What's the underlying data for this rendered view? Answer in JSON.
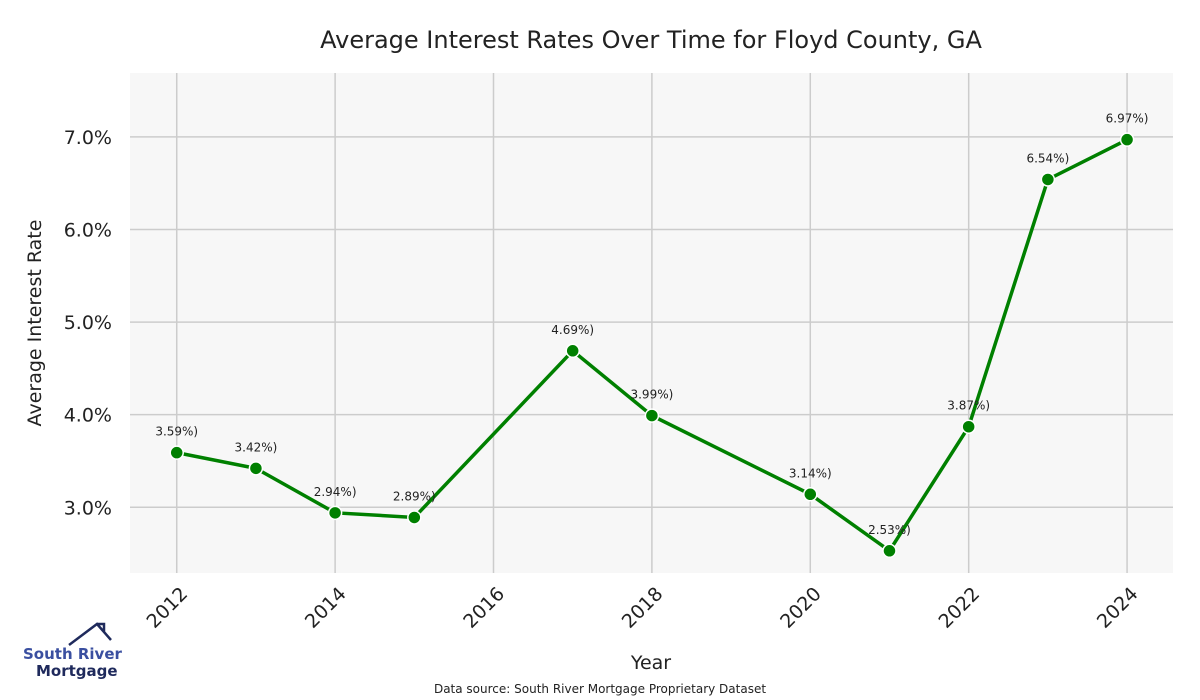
{
  "chart_data": {
    "type": "line",
    "title": "Average Interest Rates Over Time for Floyd County, GA",
    "xlabel": "Year",
    "ylabel": "Average Interest Rate",
    "x": [
      2012,
      2013,
      2014,
      2015,
      2017,
      2018,
      2020,
      2021,
      2022,
      2023,
      2024
    ],
    "series": [
      {
        "name": "Average Interest Rate",
        "values": [
          3.59,
          3.42,
          2.94,
          2.89,
          4.69,
          3.99,
          3.14,
          2.53,
          3.87,
          6.54,
          6.97
        ],
        "color": "#008000"
      }
    ],
    "data_labels": [
      "3.59%)",
      "3.42%)",
      "2.94%)",
      "2.89%)",
      "4.69%)",
      "3.99%)",
      "3.14%)",
      "2.53%)",
      "3.87%)",
      "6.54%)",
      "6.97%)"
    ],
    "xticks": [
      2012,
      2014,
      2016,
      2018,
      2020,
      2022,
      2024
    ],
    "yticks": [
      3.0,
      4.0,
      5.0,
      6.0,
      7.0
    ],
    "ytick_labels": [
      "3.0%",
      "4.0%",
      "5.0%",
      "6.0%",
      "7.0%"
    ],
    "xlim": [
      2011.41,
      2024.58
    ],
    "ylim": [
      2.29,
      7.69
    ],
    "grid": true,
    "background": "#f7f7f7"
  },
  "source": "Data source: South River Mortgage Proprietary Dataset",
  "logo": {
    "line1": "South River",
    "line2": "Mortgage"
  }
}
